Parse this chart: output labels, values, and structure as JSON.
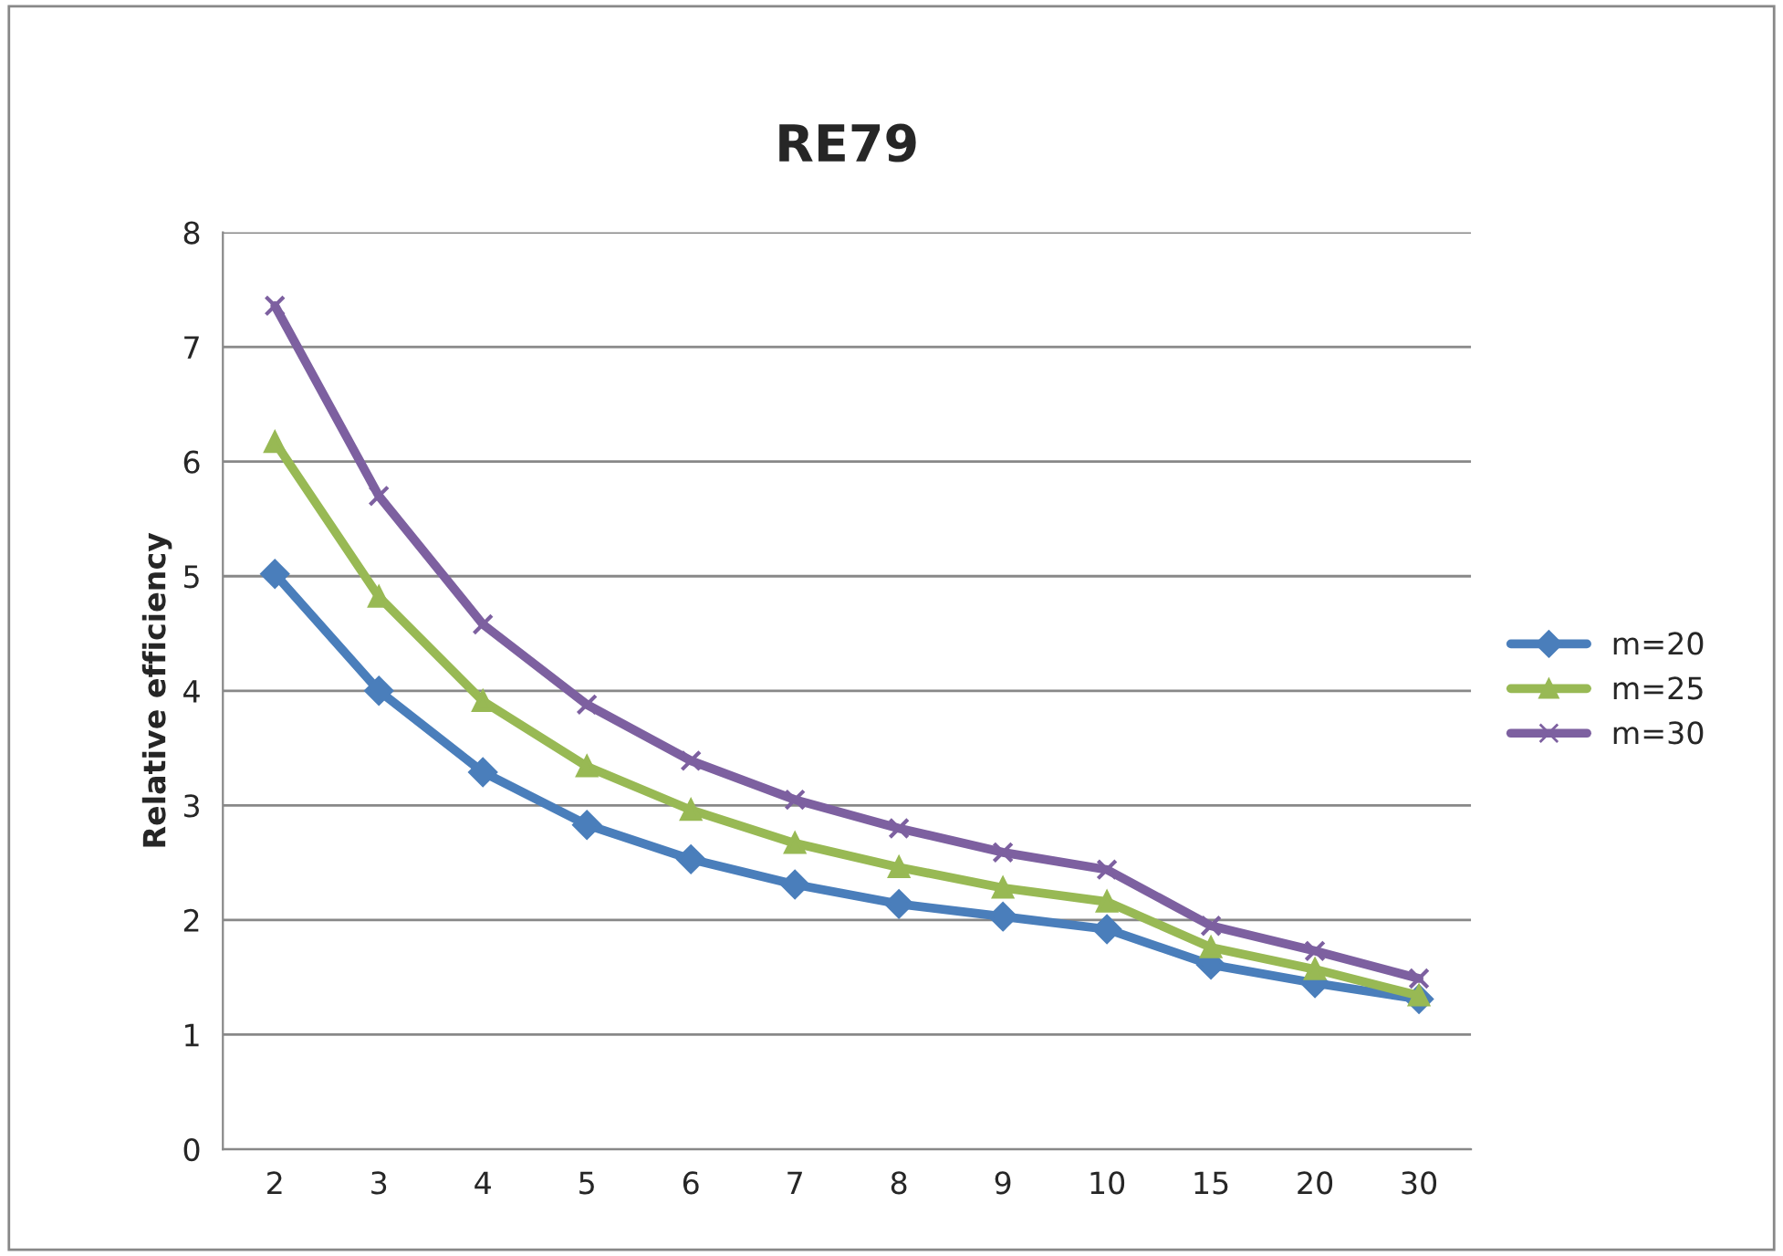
{
  "chart_data": {
    "type": "line",
    "title": "RE79",
    "ylabel": "Relative efficiency",
    "categories": [
      "2",
      "3",
      "4",
      "5",
      "6",
      "7",
      "8",
      "9",
      "10",
      "15",
      "20",
      "30"
    ],
    "series": [
      {
        "name": "m=20",
        "color": "#4a7ebb",
        "marker": "diamond",
        "values": [
          5.02,
          4.0,
          3.29,
          2.83,
          2.53,
          2.31,
          2.14,
          2.03,
          1.92,
          1.61,
          1.45,
          1.31
        ]
      },
      {
        "name": "m=25",
        "color": "#98b954",
        "marker": "triangle",
        "values": [
          6.17,
          4.82,
          3.91,
          3.34,
          2.96,
          2.67,
          2.46,
          2.28,
          2.16,
          1.76,
          1.57,
          1.34
        ]
      },
      {
        "name": "m=30",
        "color": "#7d60a0",
        "marker": "cross",
        "values": [
          7.36,
          5.7,
          4.58,
          3.88,
          3.39,
          3.05,
          2.8,
          2.59,
          2.44,
          1.95,
          1.73,
          1.49
        ]
      }
    ],
    "ylim": [
      0,
      8
    ],
    "yticks": [
      0,
      1,
      2,
      3,
      4,
      5,
      6,
      7,
      8
    ],
    "grid": "y",
    "legend": "right",
    "line_style": "solid"
  }
}
